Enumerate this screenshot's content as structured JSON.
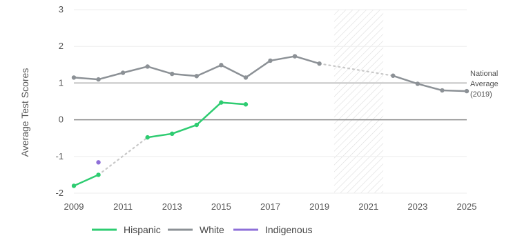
{
  "chart_data": {
    "type": "line",
    "xlabel": "",
    "ylabel": "Average Test Scores",
    "xlim": [
      2009,
      2025
    ],
    "ylim": [
      -2,
      3
    ],
    "xticks": [
      "2009",
      "2011",
      "2013",
      "2015",
      "2017",
      "2019",
      "2021",
      "2023",
      "2025"
    ],
    "yticks": [
      "-2",
      "-1",
      "0",
      "1",
      "2",
      "3"
    ],
    "grid": true,
    "legend_position": "bottom-left",
    "shaded_region": [
      2019.6,
      2021.6
    ],
    "reference_line": {
      "y": 1.0,
      "label_lines": [
        "National",
        "Average",
        "(2019)"
      ]
    },
    "series": [
      {
        "name": "Hispanic",
        "color": "#2ecc71",
        "points": [
          [
            2009,
            -1.8
          ],
          [
            2010,
            -1.5
          ],
          [
            2012,
            -0.48
          ],
          [
            2013,
            -0.38
          ],
          [
            2014,
            -0.14
          ],
          [
            2015,
            0.47
          ],
          [
            2016,
            0.42
          ]
        ],
        "segments": [
          [
            0,
            1
          ],
          [
            2,
            6
          ]
        ],
        "dotted_gaps": [
          [
            1,
            2
          ]
        ]
      },
      {
        "name": "White",
        "color": "#8c9196",
        "points": [
          [
            2009,
            1.15
          ],
          [
            2010,
            1.1
          ],
          [
            2011,
            1.28
          ],
          [
            2012,
            1.45
          ],
          [
            2013,
            1.25
          ],
          [
            2014,
            1.19
          ],
          [
            2015,
            1.49
          ],
          [
            2016,
            1.15
          ],
          [
            2017,
            1.61
          ],
          [
            2018,
            1.73
          ],
          [
            2019,
            1.53
          ],
          [
            2022,
            1.2
          ],
          [
            2023,
            0.98
          ],
          [
            2024,
            0.8
          ],
          [
            2025,
            0.78
          ]
        ],
        "segments": [
          [
            0,
            10
          ],
          [
            11,
            14
          ]
        ],
        "dotted_gaps": [
          [
            10,
            11
          ]
        ]
      },
      {
        "name": "Indigenous",
        "color": "#8e6fd8",
        "points": [
          [
            2010,
            -1.16
          ]
        ],
        "segments": [
          [
            0,
            0
          ]
        ],
        "dotted_gaps": []
      }
    ]
  }
}
